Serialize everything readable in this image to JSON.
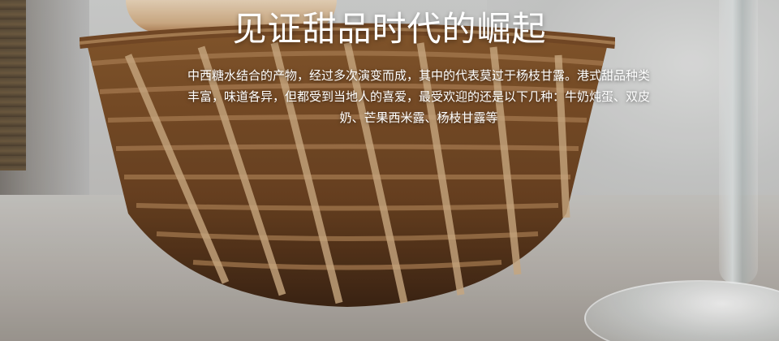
{
  "hero": {
    "title": "见证甜品时代的崛起",
    "description_lines": [
      "中西糖水结合的产物，经过多次演变而成，其中的代表莫过于杨枝甘露。港式甜品种类",
      "丰富，味道各异，但都受到当地人的喜爱，最受欢迎的还是以下几种：牛奶炖蛋、双皮",
      "奶、芒果西米露、杨枝甘露等"
    ],
    "text_color": "#ffffff"
  },
  "background": {
    "image_subject": "woven-basket-with-bread-and-wine-glass"
  }
}
